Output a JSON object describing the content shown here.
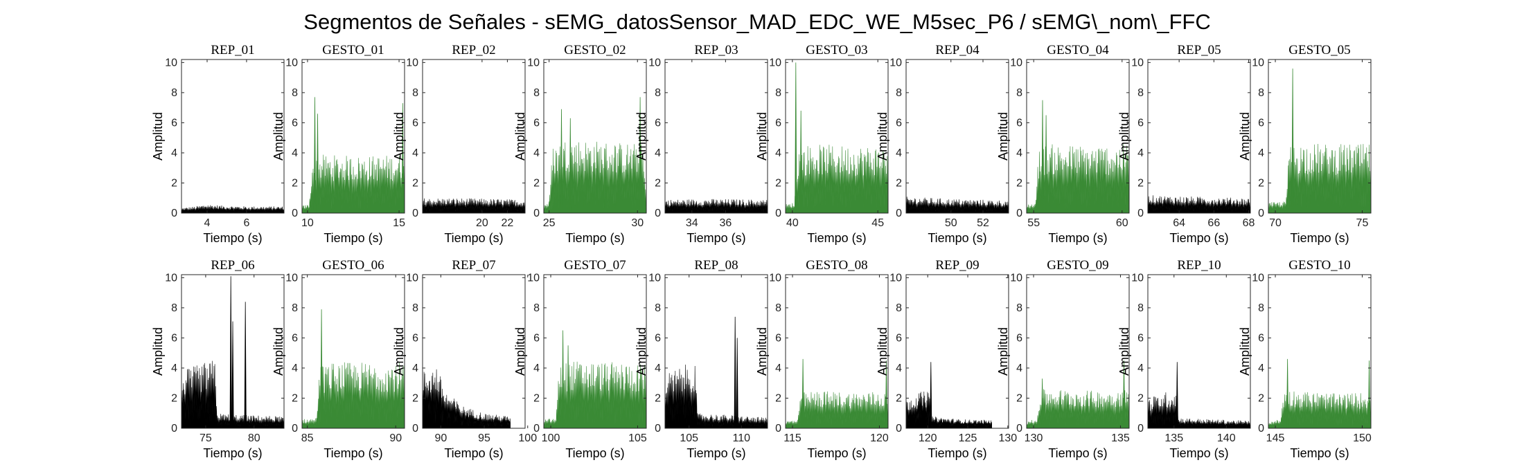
{
  "figure_title": "Segmentos de Señales - sEMG_datosSensor_MAD_EDC_WE_M5sec_P6 / sEMG\\_nom\\_FFC",
  "colors": {
    "rep": "#000000",
    "gesto": "#3a8a35"
  },
  "chart_data": [
    {
      "type": "area",
      "title": "REP_01",
      "kind": "rep",
      "xlabel": "Tiempo (s)",
      "ylabel": "Amplitud",
      "xlim": [
        2.7,
        7.9
      ],
      "xticks": [
        4,
        6
      ],
      "ylim": [
        0,
        10.2
      ],
      "yticks": [
        0,
        2,
        4,
        6,
        8,
        10
      ],
      "profile": [
        [
          2.7,
          0.35
        ],
        [
          3.4,
          0.45
        ],
        [
          4.0,
          0.6
        ],
        [
          4.8,
          0.5
        ],
        [
          6.0,
          0.45
        ],
        [
          7.9,
          0.45
        ]
      ],
      "spikes": []
    },
    {
      "type": "area",
      "title": "GESTO_01",
      "kind": "gesto",
      "xlabel": "Tiempo (s)",
      "ylabel": "Amplitud",
      "xlim": [
        9.7,
        15.3
      ],
      "xticks": [
        10,
        15
      ],
      "ylim": [
        0,
        10.2
      ],
      "yticks": [
        0,
        2,
        4,
        6,
        8,
        10
      ],
      "profile": [
        [
          9.7,
          0.5
        ],
        [
          10.1,
          0.6
        ],
        [
          10.25,
          3.8
        ],
        [
          10.7,
          3.9
        ],
        [
          13.0,
          3.8
        ],
        [
          15.0,
          3.9
        ],
        [
          15.3,
          4.0
        ]
      ],
      "spikes": [
        [
          10.4,
          7.7
        ],
        [
          10.55,
          6.6
        ],
        [
          15.2,
          7.3
        ]
      ]
    },
    {
      "type": "area",
      "title": "REP_02",
      "kind": "rep",
      "xlabel": "Tiempo (s)",
      "ylabel": "Amplitud",
      "xlim": [
        15.3,
        23.4
      ],
      "xticks": [
        20,
        22
      ],
      "ylim": [
        0,
        10.2
      ],
      "yticks": [
        0,
        2,
        4,
        6,
        8,
        10
      ],
      "profile": [
        [
          15.3,
          1.0
        ],
        [
          18.0,
          1.0
        ],
        [
          21.0,
          0.95
        ],
        [
          23.4,
          0.9
        ]
      ],
      "spikes": []
    },
    {
      "type": "area",
      "title": "GESTO_02",
      "kind": "gesto",
      "xlabel": "Tiempo (s)",
      "ylabel": "Amplitud",
      "xlim": [
        24.7,
        30.5
      ],
      "xticks": [
        25,
        30
      ],
      "ylim": [
        0,
        10.2
      ],
      "yticks": [
        0,
        2,
        4,
        6,
        8,
        10
      ],
      "profile": [
        [
          24.7,
          0.6
        ],
        [
          25.0,
          0.8
        ],
        [
          25.2,
          4.5
        ],
        [
          26.0,
          5.0
        ],
        [
          28.0,
          4.8
        ],
        [
          30.3,
          4.6
        ],
        [
          30.5,
          1.0
        ]
      ],
      "spikes": [
        [
          25.7,
          6.9
        ],
        [
          26.2,
          6.3
        ],
        [
          30.15,
          7.7
        ]
      ]
    },
    {
      "type": "area",
      "title": "REP_03",
      "kind": "rep",
      "xlabel": "Tiempo (s)",
      "ylabel": "Amplitud",
      "xlim": [
        32.4,
        38.5
      ],
      "xticks": [
        34,
        36
      ],
      "ylim": [
        0,
        10.2
      ],
      "yticks": [
        0,
        2,
        4,
        6,
        8,
        10
      ],
      "profile": [
        [
          32.4,
          0.9
        ],
        [
          35.0,
          0.95
        ],
        [
          38.5,
          0.9
        ]
      ],
      "spikes": []
    },
    {
      "type": "area",
      "title": "GESTO_03",
      "kind": "gesto",
      "xlabel": "Tiempo (s)",
      "ylabel": "Amplitud",
      "xlim": [
        39.6,
        45.6
      ],
      "xticks": [
        40,
        45
      ],
      "ylim": [
        0,
        10.2
      ],
      "yticks": [
        0,
        2,
        4,
        6,
        8,
        10
      ],
      "profile": [
        [
          39.6,
          0.6
        ],
        [
          40.1,
          0.7
        ],
        [
          40.35,
          4.3
        ],
        [
          41.0,
          4.6
        ],
        [
          43.0,
          4.5
        ],
        [
          45.6,
          4.5
        ]
      ],
      "spikes": [
        [
          40.2,
          10.0
        ],
        [
          40.5,
          6.8
        ]
      ]
    },
    {
      "type": "area",
      "title": "REP_04",
      "kind": "rep",
      "xlabel": "Tiempo (s)",
      "ylabel": "Amplitud",
      "xlim": [
        47.2,
        53.6
      ],
      "xticks": [
        50,
        52
      ],
      "ylim": [
        0,
        10.2
      ],
      "yticks": [
        0,
        2,
        4,
        6,
        8,
        10
      ],
      "profile": [
        [
          47.2,
          1.1
        ],
        [
          50.0,
          0.95
        ],
        [
          53.6,
          0.85
        ]
      ],
      "spikes": []
    },
    {
      "type": "area",
      "title": "GESTO_04",
      "kind": "gesto",
      "xlabel": "Tiempo (s)",
      "ylabel": "Amplitud",
      "xlim": [
        54.6,
        60.4
      ],
      "xticks": [
        55,
        60
      ],
      "ylim": [
        0,
        10.2
      ],
      "yticks": [
        0,
        2,
        4,
        6,
        8,
        10
      ],
      "profile": [
        [
          54.6,
          0.6
        ],
        [
          55.1,
          0.7
        ],
        [
          55.3,
          4.5
        ],
        [
          56.0,
          4.6
        ],
        [
          58.0,
          4.5
        ],
        [
          60.4,
          4.6
        ]
      ],
      "spikes": [
        [
          55.5,
          7.5
        ],
        [
          55.7,
          6.5
        ]
      ]
    },
    {
      "type": "area",
      "title": "REP_05",
      "kind": "rep",
      "xlabel": "Tiempo (s)",
      "ylabel": "Amplitud",
      "xlim": [
        62.2,
        68.1
      ],
      "xticks": [
        64,
        66,
        68
      ],
      "ylim": [
        0,
        10.2
      ],
      "yticks": [
        0,
        2,
        4,
        6,
        8,
        10
      ],
      "profile": [
        [
          62.2,
          1.2
        ],
        [
          65.0,
          1.1
        ],
        [
          68.1,
          1.0
        ]
      ],
      "spikes": []
    },
    {
      "type": "area",
      "title": "GESTO_05",
      "kind": "gesto",
      "xlabel": "Tiempo (s)",
      "ylabel": "Amplitud",
      "xlim": [
        69.6,
        75.5
      ],
      "xticks": [
        70,
        75
      ],
      "ylim": [
        0,
        10.2
      ],
      "yticks": [
        0,
        2,
        4,
        6,
        8,
        10
      ],
      "profile": [
        [
          69.6,
          0.7
        ],
        [
          70.6,
          0.8
        ],
        [
          70.8,
          4.5
        ],
        [
          71.5,
          4.7
        ],
        [
          73.0,
          4.6
        ],
        [
          75.5,
          4.6
        ]
      ],
      "spikes": [
        [
          71.0,
          9.6
        ]
      ]
    },
    {
      "type": "area",
      "title": "REP_06",
      "kind": "rep",
      "xlabel": "Tiempo (s)",
      "ylabel": "Amplitud",
      "xlim": [
        72.5,
        83.1
      ],
      "xticks": [
        75,
        80
      ],
      "ylim": [
        0,
        10.2
      ],
      "yticks": [
        0,
        2,
        4,
        6,
        8,
        10
      ],
      "profile": [
        [
          72.5,
          3.8
        ],
        [
          74.5,
          4.3
        ],
        [
          76.0,
          4.6
        ],
        [
          76.2,
          1.0
        ],
        [
          78.5,
          0.9
        ],
        [
          80.5,
          0.85
        ],
        [
          83.1,
          0.8
        ]
      ],
      "spikes": [
        [
          77.6,
          10.1
        ],
        [
          77.8,
          7.1
        ],
        [
          79.1,
          8.4
        ]
      ]
    },
    {
      "type": "area",
      "title": "GESTO_06",
      "kind": "gesto",
      "xlabel": "Tiempo (s)",
      "ylabel": "Amplitud",
      "xlim": [
        84.7,
        90.5
      ],
      "xticks": [
        85,
        90
      ],
      "ylim": [
        0,
        10.2
      ],
      "yticks": [
        0,
        2,
        4,
        6,
        8,
        10
      ],
      "profile": [
        [
          84.7,
          0.6
        ],
        [
          85.5,
          0.7
        ],
        [
          85.7,
          4.2
        ],
        [
          86.5,
          4.4
        ],
        [
          88.5,
          4.4
        ],
        [
          90.5,
          4.4
        ]
      ],
      "spikes": [
        [
          85.8,
          7.9
        ]
      ]
    },
    {
      "type": "area",
      "title": "REP_07",
      "kind": "rep",
      "xlabel": "Tiempo (s)",
      "ylabel": "Amplitud",
      "xlim": [
        87.9,
        99.7
      ],
      "xticks": [
        90,
        95,
        100
      ],
      "ylim": [
        0,
        10.2
      ],
      "yticks": [
        0,
        2,
        4,
        6,
        8,
        10
      ],
      "profile": [
        [
          87.9,
          3.8
        ],
        [
          89.5,
          4.2
        ],
        [
          90.5,
          2.5
        ],
        [
          92.5,
          1.5
        ],
        [
          95.0,
          1.0
        ],
        [
          98.0,
          0.8
        ]
      ],
      "cut": 98.0,
      "spikes": []
    },
    {
      "type": "area",
      "title": "GESTO_07",
      "kind": "gesto",
      "xlabel": "Tiempo (s)",
      "ylabel": "Amplitud",
      "xlim": [
        99.6,
        105.5
      ],
      "xticks": [
        100,
        105
      ],
      "ylim": [
        0,
        10.2
      ],
      "yticks": [
        0,
        2,
        4,
        6,
        8,
        10
      ],
      "profile": [
        [
          99.6,
          0.6
        ],
        [
          100.3,
          0.7
        ],
        [
          100.5,
          4.4
        ],
        [
          101.5,
          4.5
        ],
        [
          103.5,
          4.4
        ],
        [
          105.5,
          4.3
        ]
      ],
      "spikes": [
        [
          100.7,
          6.5
        ],
        [
          101.0,
          5.5
        ]
      ]
    },
    {
      "type": "area",
      "title": "REP_08",
      "kind": "rep",
      "xlabel": "Tiempo (s)",
      "ylabel": "Amplitud",
      "xlim": [
        102.7,
        112.5
      ],
      "xticks": [
        105,
        110
      ],
      "ylim": [
        0,
        10.2
      ],
      "yticks": [
        0,
        2,
        4,
        6,
        8,
        10
      ],
      "profile": [
        [
          102.7,
          3.6
        ],
        [
          104.5,
          4.2
        ],
        [
          105.6,
          4.4
        ],
        [
          105.8,
          1.0
        ],
        [
          108.5,
          0.9
        ],
        [
          112.5,
          0.7
        ]
      ],
      "spikes": [
        [
          109.4,
          7.4
        ],
        [
          109.6,
          6.0
        ]
      ]
    },
    {
      "type": "area",
      "title": "GESTO_08",
      "kind": "gesto",
      "xlabel": "Tiempo (s)",
      "ylabel": "Amplitud",
      "xlim": [
        114.6,
        120.5
      ],
      "xticks": [
        115,
        120
      ],
      "ylim": [
        0,
        10.2
      ],
      "yticks": [
        0,
        2,
        4,
        6,
        8,
        10
      ],
      "profile": [
        [
          114.6,
          0.5
        ],
        [
          115.3,
          0.6
        ],
        [
          115.5,
          2.4
        ],
        [
          116.5,
          2.5
        ],
        [
          118.5,
          2.4
        ],
        [
          120.5,
          2.5
        ]
      ],
      "spikes": [
        [
          115.6,
          4.6
        ],
        [
          120.4,
          4.5
        ]
      ]
    },
    {
      "type": "area",
      "title": "REP_09",
      "kind": "rep",
      "xlabel": "Tiempo (s)",
      "ylabel": "Amplitud",
      "xlim": [
        117.3,
        130.1
      ],
      "xticks": [
        120,
        125,
        130
      ],
      "ylim": [
        0,
        10.2
      ],
      "yticks": [
        0,
        2,
        4,
        6,
        8,
        10
      ],
      "profile": [
        [
          117.3,
          2.0
        ],
        [
          118.8,
          2.4
        ],
        [
          120.2,
          2.5
        ],
        [
          120.4,
          0.8
        ],
        [
          124.0,
          0.6
        ],
        [
          128.0,
          0.55
        ]
      ],
      "cut": 128.0,
      "spikes": [
        [
          120.4,
          4.4
        ]
      ]
    },
    {
      "type": "area",
      "title": "GESTO_09",
      "kind": "gesto",
      "xlabel": "Tiempo (s)",
      "ylabel": "Amplitud",
      "xlim": [
        129.6,
        135.5
      ],
      "xticks": [
        130,
        135
      ],
      "ylim": [
        0,
        10.2
      ],
      "yticks": [
        0,
        2,
        4,
        6,
        8,
        10
      ],
      "profile": [
        [
          129.6,
          0.5
        ],
        [
          130.2,
          0.6
        ],
        [
          130.4,
          2.6
        ],
        [
          131.5,
          2.6
        ],
        [
          133.5,
          2.5
        ],
        [
          135.5,
          2.6
        ]
      ],
      "spikes": [
        [
          130.5,
          3.3
        ],
        [
          135.2,
          4.5
        ]
      ]
    },
    {
      "type": "area",
      "title": "REP_10",
      "kind": "rep",
      "xlabel": "Tiempo (s)",
      "ylabel": "Amplitud",
      "xlim": [
        132.5,
        142.3
      ],
      "xticks": [
        135,
        140
      ],
      "ylim": [
        0,
        10.2
      ],
      "yticks": [
        0,
        2,
        4,
        6,
        8,
        10
      ],
      "profile": [
        [
          132.5,
          2.0
        ],
        [
          134.0,
          2.4
        ],
        [
          135.2,
          2.5
        ],
        [
          135.4,
          0.7
        ],
        [
          138.5,
          0.6
        ],
        [
          142.3,
          0.5
        ]
      ],
      "spikes": [
        [
          135.3,
          4.4
        ]
      ]
    },
    {
      "type": "area",
      "title": "GESTO_10",
      "kind": "gesto",
      "xlabel": "Tiempo (s)",
      "ylabel": "Amplitud",
      "xlim": [
        144.6,
        150.5
      ],
      "xticks": [
        145,
        150
      ],
      "ylim": [
        0,
        10.2
      ],
      "yticks": [
        0,
        2,
        4,
        6,
        8,
        10
      ],
      "profile": [
        [
          144.6,
          0.5
        ],
        [
          145.3,
          0.6
        ],
        [
          145.5,
          2.6
        ],
        [
          146.5,
          2.5
        ],
        [
          148.5,
          2.3
        ],
        [
          150.5,
          2.4
        ]
      ],
      "spikes": [
        [
          145.7,
          4.6
        ],
        [
          150.4,
          4.5
        ]
      ]
    }
  ]
}
